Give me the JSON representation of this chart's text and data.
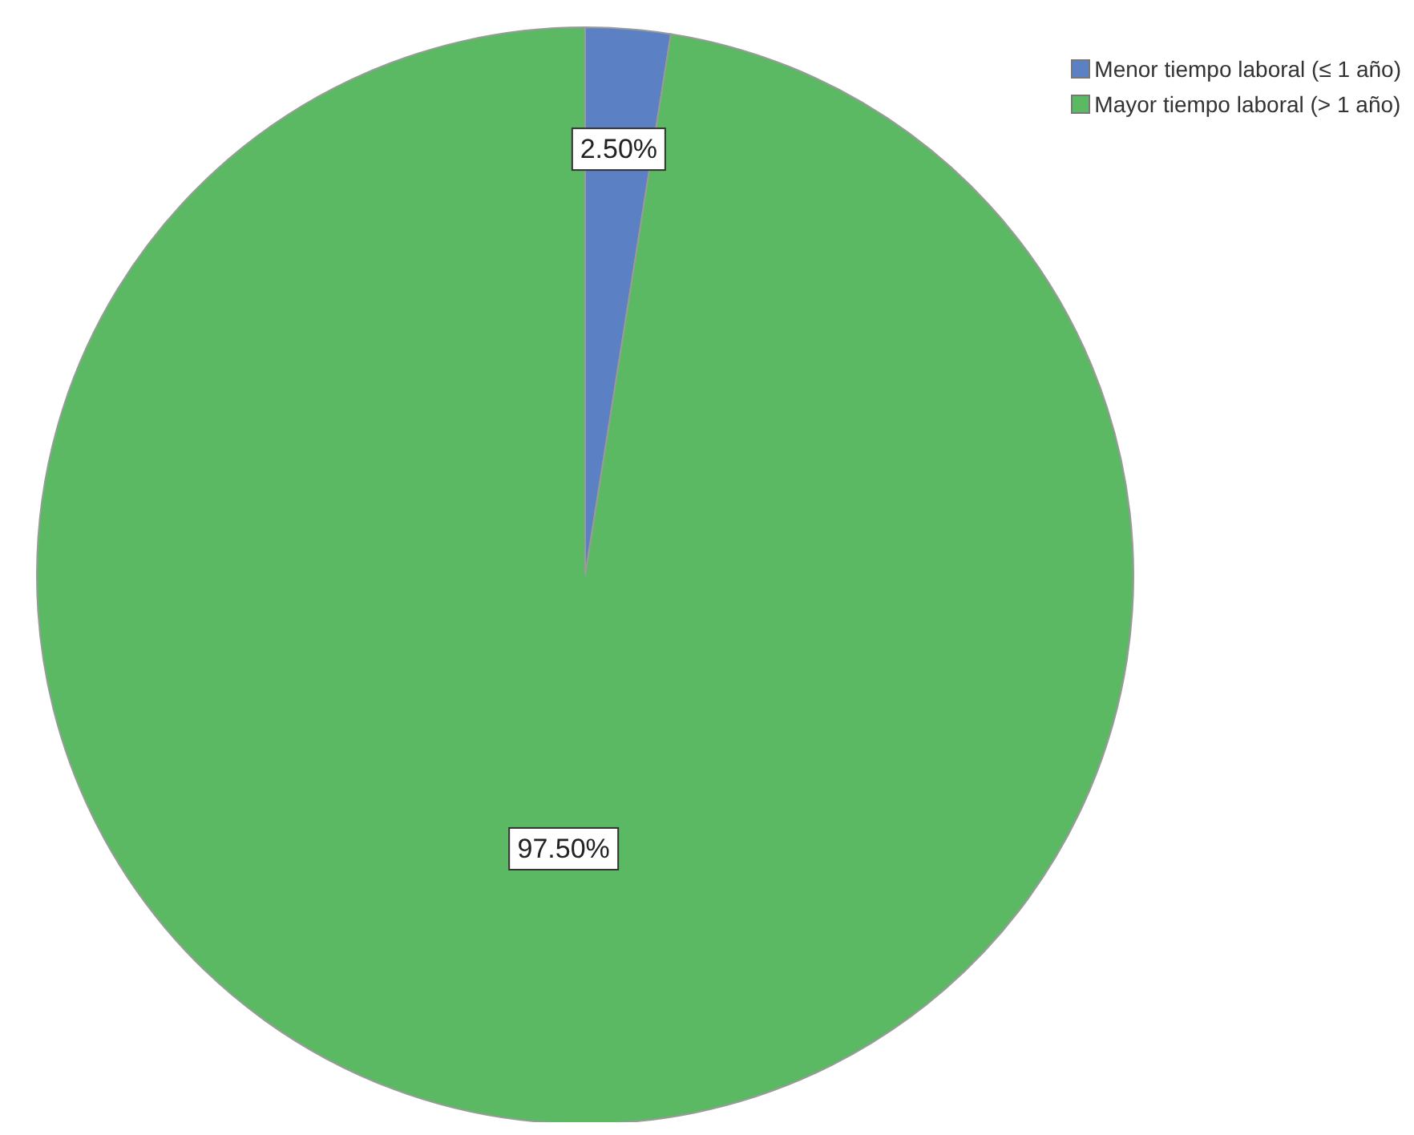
{
  "chart_data": {
    "type": "pie",
    "categories": [
      "Menor tiempo laboral (≤ 1 año)",
      "Mayor tiempo laboral (> 1 año)"
    ],
    "values": [
      2.5,
      97.5
    ],
    "colors": [
      "#5b80c4",
      "#5cb963"
    ],
    "value_labels": [
      "2.50%",
      "97.50%"
    ],
    "legend": "top right"
  }
}
